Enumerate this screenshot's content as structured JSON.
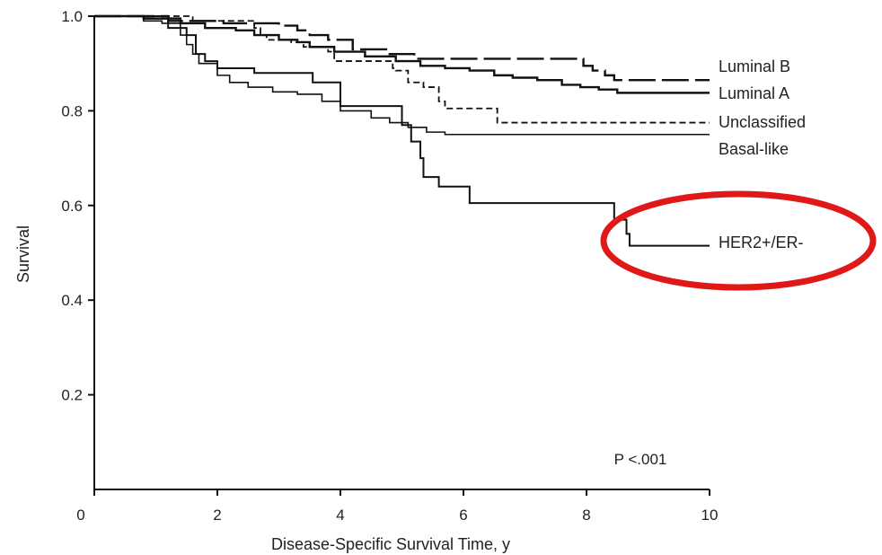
{
  "chart_data": {
    "type": "line",
    "step": true,
    "title": "",
    "xlabel": "Disease-Specific Survival Time, y",
    "ylabel": "Survival",
    "xlim": [
      0,
      10
    ],
    "ylim": [
      0,
      1.0
    ],
    "x_ticks": [
      0,
      2,
      4,
      6,
      8,
      10
    ],
    "x_tick_labels": [
      "0",
      "2",
      "4",
      "6",
      "8",
      "10"
    ],
    "y_ticks": [
      0.2,
      0.4,
      0.6,
      0.8,
      1.0
    ],
    "y_tick_labels": [
      "0.2",
      "0.4",
      "0.6",
      "0.8",
      "1.0"
    ],
    "grid": false,
    "annotation": {
      "text": "P <.001"
    },
    "highlight": {
      "color": "#e01818",
      "series": "HER2+/ER-"
    },
    "series": [
      {
        "name": "Luminal B",
        "line_style": "long-dash",
        "points": [
          [
            0,
            1.0
          ],
          [
            1.1,
            1.0
          ],
          [
            1.2,
            0.99
          ],
          [
            2.0,
            0.99
          ],
          [
            2.1,
            0.985
          ],
          [
            2.9,
            0.985
          ],
          [
            3.0,
            0.98
          ],
          [
            3.3,
            0.97
          ],
          [
            3.5,
            0.96
          ],
          [
            3.8,
            0.95
          ],
          [
            4.2,
            0.93
          ],
          [
            4.8,
            0.92
          ],
          [
            5.2,
            0.91
          ],
          [
            7.8,
            0.91
          ],
          [
            7.95,
            0.895
          ],
          [
            8.1,
            0.885
          ],
          [
            8.3,
            0.875
          ],
          [
            8.45,
            0.865
          ],
          [
            10,
            0.865
          ]
        ]
      },
      {
        "name": "Luminal A",
        "line_style": "solid",
        "points": [
          [
            0,
            1.0
          ],
          [
            0.7,
            1.0
          ],
          [
            0.8,
            0.995
          ],
          [
            1.3,
            0.995
          ],
          [
            1.4,
            0.985
          ],
          [
            1.7,
            0.985
          ],
          [
            1.8,
            0.975
          ],
          [
            2.3,
            0.97
          ],
          [
            2.6,
            0.96
          ],
          [
            3.0,
            0.95
          ],
          [
            3.3,
            0.945
          ],
          [
            3.5,
            0.935
          ],
          [
            3.9,
            0.925
          ],
          [
            4.4,
            0.915
          ],
          [
            4.9,
            0.905
          ],
          [
            5.3,
            0.895
          ],
          [
            5.7,
            0.89
          ],
          [
            6.1,
            0.885
          ],
          [
            6.5,
            0.875
          ],
          [
            6.8,
            0.87
          ],
          [
            7.2,
            0.865
          ],
          [
            7.6,
            0.855
          ],
          [
            7.9,
            0.85
          ],
          [
            8.2,
            0.845
          ],
          [
            8.5,
            0.838
          ],
          [
            10,
            0.838
          ]
        ]
      },
      {
        "name": "Unclassified",
        "line_style": "short-dash",
        "points": [
          [
            0,
            1.0
          ],
          [
            1.5,
            1.0
          ],
          [
            1.6,
            0.99
          ],
          [
            2.4,
            0.99
          ],
          [
            2.6,
            0.975
          ],
          [
            2.7,
            0.96
          ],
          [
            2.8,
            0.95
          ],
          [
            3.2,
            0.945
          ],
          [
            3.4,
            0.935
          ],
          [
            3.8,
            0.925
          ],
          [
            3.9,
            0.905
          ],
          [
            4.8,
            0.905
          ],
          [
            4.85,
            0.89
          ],
          [
            4.9,
            0.885
          ],
          [
            5.1,
            0.86
          ],
          [
            5.35,
            0.85
          ],
          [
            5.6,
            0.82
          ],
          [
            5.7,
            0.805
          ],
          [
            6.45,
            0.805
          ],
          [
            6.55,
            0.775
          ],
          [
            10,
            0.775
          ]
        ]
      },
      {
        "name": "Basal-like",
        "line_style": "solid",
        "points": [
          [
            0,
            1.0
          ],
          [
            0.6,
            1.0
          ],
          [
            0.8,
            0.99
          ],
          [
            1.1,
            0.985
          ],
          [
            1.4,
            0.96
          ],
          [
            1.5,
            0.94
          ],
          [
            1.6,
            0.92
          ],
          [
            1.7,
            0.9
          ],
          [
            2.0,
            0.875
          ],
          [
            2.2,
            0.86
          ],
          [
            2.5,
            0.85
          ],
          [
            2.9,
            0.84
          ],
          [
            3.3,
            0.835
          ],
          [
            3.7,
            0.82
          ],
          [
            4.0,
            0.8
          ],
          [
            4.5,
            0.785
          ],
          [
            4.8,
            0.775
          ],
          [
            5.1,
            0.765
          ],
          [
            5.4,
            0.755
          ],
          [
            5.7,
            0.75
          ],
          [
            10,
            0.75
          ]
        ]
      },
      {
        "name": "HER2+/ER-",
        "line_style": "solid",
        "points": [
          [
            0,
            1.0
          ],
          [
            1.1,
            1.0
          ],
          [
            1.2,
            0.975
          ],
          [
            1.5,
            0.96
          ],
          [
            1.65,
            0.92
          ],
          [
            1.8,
            0.905
          ],
          [
            2.0,
            0.89
          ],
          [
            2.6,
            0.88
          ],
          [
            3.4,
            0.88
          ],
          [
            3.55,
            0.86
          ],
          [
            3.9,
            0.86
          ],
          [
            4.0,
            0.81
          ],
          [
            4.8,
            0.81
          ],
          [
            5.0,
            0.77
          ],
          [
            5.15,
            0.735
          ],
          [
            5.3,
            0.7
          ],
          [
            5.35,
            0.66
          ],
          [
            5.6,
            0.64
          ],
          [
            6.1,
            0.605
          ],
          [
            7.1,
            0.605
          ],
          [
            7.5,
            0.605
          ],
          [
            8.4,
            0.605
          ],
          [
            8.45,
            0.57
          ],
          [
            8.65,
            0.54
          ],
          [
            8.7,
            0.515
          ],
          [
            10,
            0.515
          ]
        ]
      }
    ]
  }
}
